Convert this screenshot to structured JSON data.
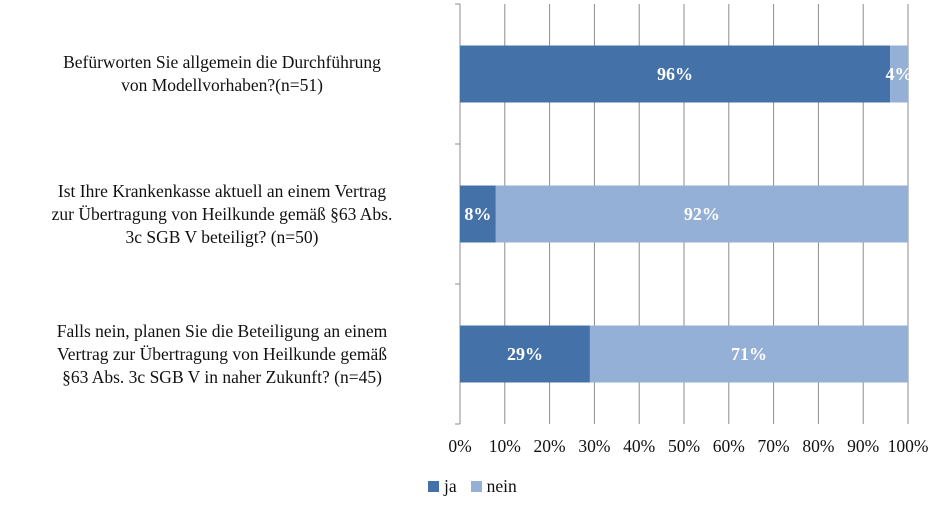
{
  "chart_data": {
    "type": "bar",
    "orientation": "horizontal",
    "stacked": true,
    "categories": [
      [
        "Befürworten Sie allgemein die Durchführung",
        "von Modellvorhaben?(n=51)"
      ],
      [
        "Ist Ihre Krankenkasse aktuell an einem Vertrag",
        "zur Übertragung von Heilkunde gemäß §63 Abs.",
        "3c SGB V beteiligt? (n=50)"
      ],
      [
        "Falls nein, planen Sie die Beteiligung an einem",
        "Vertrag zur Übertragung von Heilkunde gemäß",
        "§63 Abs. 3c SGB V in naher Zukunft? (n=45)"
      ]
    ],
    "series": [
      {
        "name": "ja",
        "color": "#4472a8",
        "values": [
          96,
          8,
          29
        ],
        "labels": [
          "96%",
          "8%",
          "29%"
        ]
      },
      {
        "name": "nein",
        "color": "#95b0d6",
        "values": [
          4,
          92,
          71
        ],
        "labels": [
          "4%",
          "92%",
          "71%"
        ]
      }
    ],
    "xlim": [
      0,
      100
    ],
    "xticks": [
      "0%",
      "10%",
      "20%",
      "30%",
      "40%",
      "50%",
      "60%",
      "70%",
      "80%",
      "90%",
      "100%"
    ],
    "grid": true,
    "legend_position": "bottom",
    "title": "",
    "xlabel": "",
    "ylabel": ""
  }
}
